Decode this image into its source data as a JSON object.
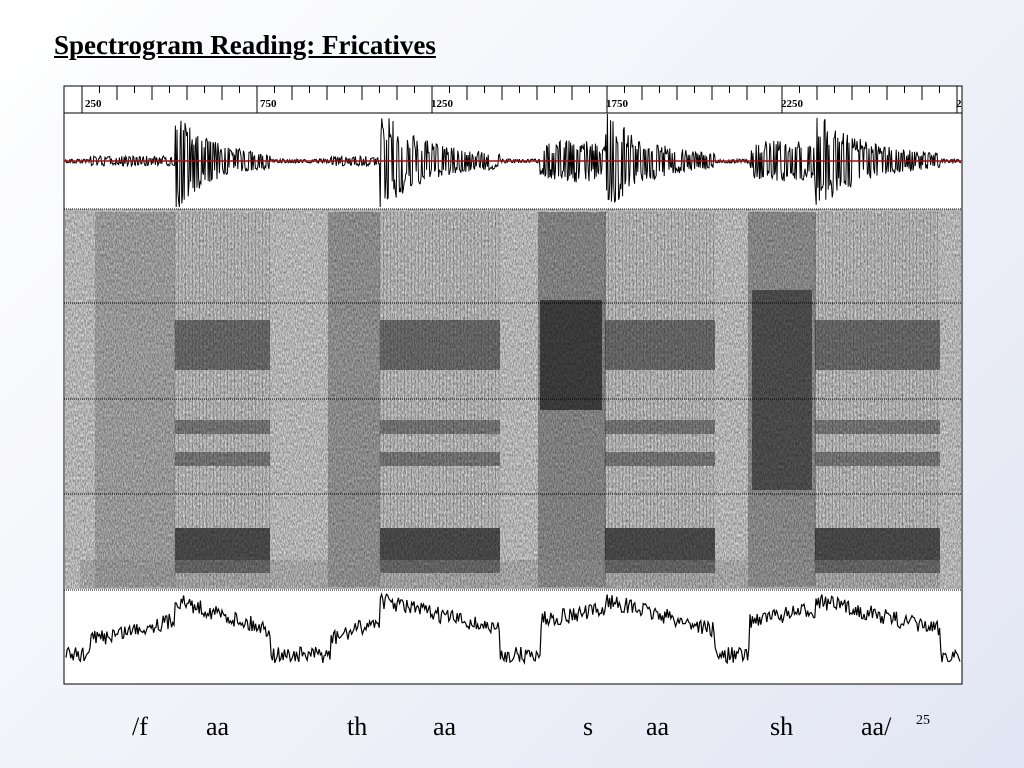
{
  "title": "Spectrogram Reading: Fricatives",
  "ruler_labels": [
    "250",
    "750",
    "1250",
    "1750",
    "2250",
    "2"
  ],
  "phonemes": [
    "/f",
    "aa",
    "th",
    "aa",
    "s",
    "aa",
    "sh",
    "aa/"
  ],
  "page_number": "25"
}
